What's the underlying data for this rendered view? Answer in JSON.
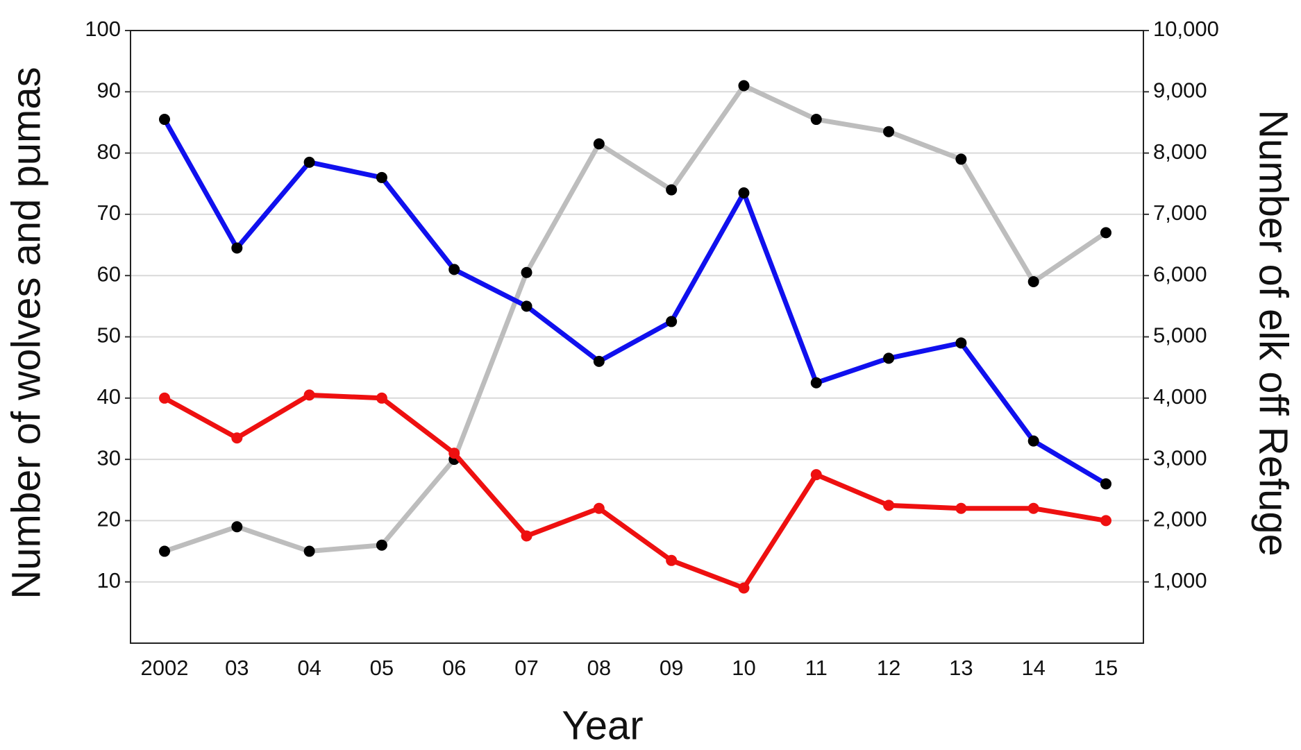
{
  "chart_data": {
    "type": "line",
    "x_label": "Year",
    "y_label": "Number of wolves and pumas",
    "y2_label": "Number of elk off Refuge",
    "categories": [
      "2002",
      "03",
      "04",
      "05",
      "06",
      "07",
      "08",
      "09",
      "10",
      "11",
      "12",
      "13",
      "14",
      "15"
    ],
    "ylim": [
      0,
      100
    ],
    "yticks": [
      10,
      20,
      30,
      40,
      50,
      60,
      70,
      80,
      90,
      100
    ],
    "y2lim": [
      0,
      10000
    ],
    "y2ticks": [
      {
        "value": 1000,
        "label": "1,000"
      },
      {
        "value": 2000,
        "label": "2,000"
      },
      {
        "value": 3000,
        "label": "3,000"
      },
      {
        "value": 4000,
        "label": "4,000"
      },
      {
        "value": 5000,
        "label": "5,000"
      },
      {
        "value": 6000,
        "label": "6,000"
      },
      {
        "value": 7000,
        "label": "7,000"
      },
      {
        "value": 8000,
        "label": "8,000"
      },
      {
        "value": 9000,
        "label": "9,000"
      },
      {
        "value": 10000,
        "label": "10,000"
      }
    ],
    "grid": true,
    "series": [
      {
        "color": "#bdbdbd",
        "marker_color": "#000000",
        "axis": "y2",
        "values": [
          1500,
          1900,
          1500,
          1600,
          3000,
          6050,
          8150,
          7400,
          9100,
          8550,
          8350,
          7900,
          5900,
          6700
        ]
      },
      {
        "color": "#1010ee",
        "marker_color": "#000000",
        "axis": "y",
        "values": [
          85.5,
          64.5,
          78.5,
          76,
          61,
          55,
          46,
          52.5,
          73.5,
          42.5,
          46.5,
          49,
          33,
          26
        ]
      },
      {
        "color": "#ee1010",
        "marker_color": "#ee1010",
        "axis": "y",
        "values": [
          40,
          33.5,
          40.5,
          40,
          31,
          17.5,
          22,
          13.5,
          9,
          27.5,
          22.5,
          22,
          22,
          20
        ]
      }
    ]
  }
}
